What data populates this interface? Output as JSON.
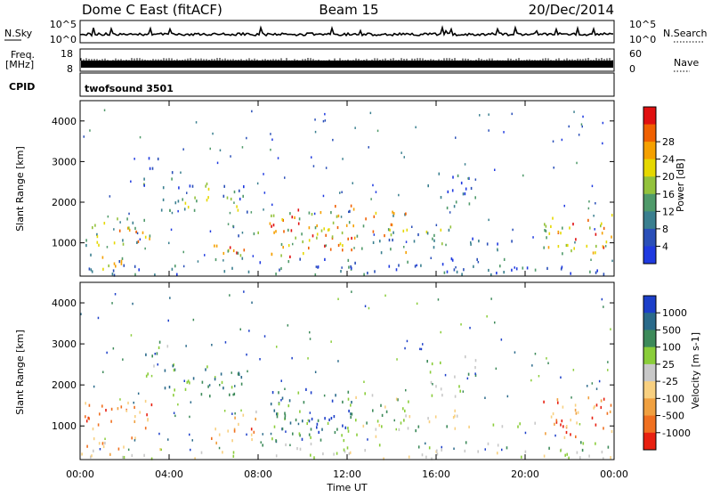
{
  "header": {
    "radar": "Dome C East (fitACF)",
    "beam": "Beam 15",
    "date": "20/Dec/2014"
  },
  "strips": {
    "nsky_label": "N.Sky",
    "nsky_ticks": [
      "10^5",
      "10^0"
    ],
    "nsearch_label": "N.Search",
    "nsearch_ticks": [
      "10^5",
      "10^0"
    ],
    "freq_label_1": "Freq.",
    "freq_label_2": "[MHz]",
    "freq_ticks": [
      "18",
      "8"
    ],
    "nave_label": "Nave",
    "nave_ticks": [
      "60",
      "0"
    ],
    "cpid_label": "CPID",
    "cpid_value": "twofsound 3501"
  },
  "chart_data": [
    {
      "type": "heatmap",
      "name": "power",
      "ylabel": "Slant Range [km]",
      "y_ticks": [
        "1000",
        "2000",
        "3000",
        "4000"
      ],
      "ylim": [
        180,
        4500
      ],
      "x_ticks": [
        "00:00",
        "04:00",
        "08:00",
        "12:00",
        "16:00",
        "20:00",
        "00:00"
      ],
      "xlim_hours": [
        0,
        24
      ],
      "colorbar_label": "Power [dB]",
      "colorbar_ticks": [
        "4",
        "8",
        "12",
        "16",
        "20",
        "24",
        "28"
      ],
      "colorbar_colors": [
        "#1f3ae0",
        "#2a4fb8",
        "#3a7f8f",
        "#4f9a6a",
        "#93c23c",
        "#e6d800",
        "#f5a000",
        "#f06000",
        "#e01010"
      ]
    },
    {
      "type": "heatmap",
      "name": "velocity",
      "ylabel": "Slant Range [km]",
      "y_ticks": [
        "1000",
        "2000",
        "3000",
        "4000"
      ],
      "ylim": [
        180,
        4500
      ],
      "x_ticks": [
        "00:00",
        "04:00",
        "08:00",
        "12:00",
        "16:00",
        "20:00",
        "00:00"
      ],
      "xlim_hours": [
        0,
        24
      ],
      "xlabel": "Time UT",
      "colorbar_label": "Velocity [m s-1]",
      "colorbar_ticks": [
        "1000",
        "500",
        "100",
        "25",
        "-25",
        "-100",
        "-500",
        "-1000"
      ],
      "colorbar_colors": [
        "#1c3fc9",
        "#2a6a8a",
        "#3d8a5a",
        "#8acd3a",
        "#c8c8c8",
        "#f8d080",
        "#f0a040",
        "#f07020",
        "#e82010"
      ]
    }
  ]
}
